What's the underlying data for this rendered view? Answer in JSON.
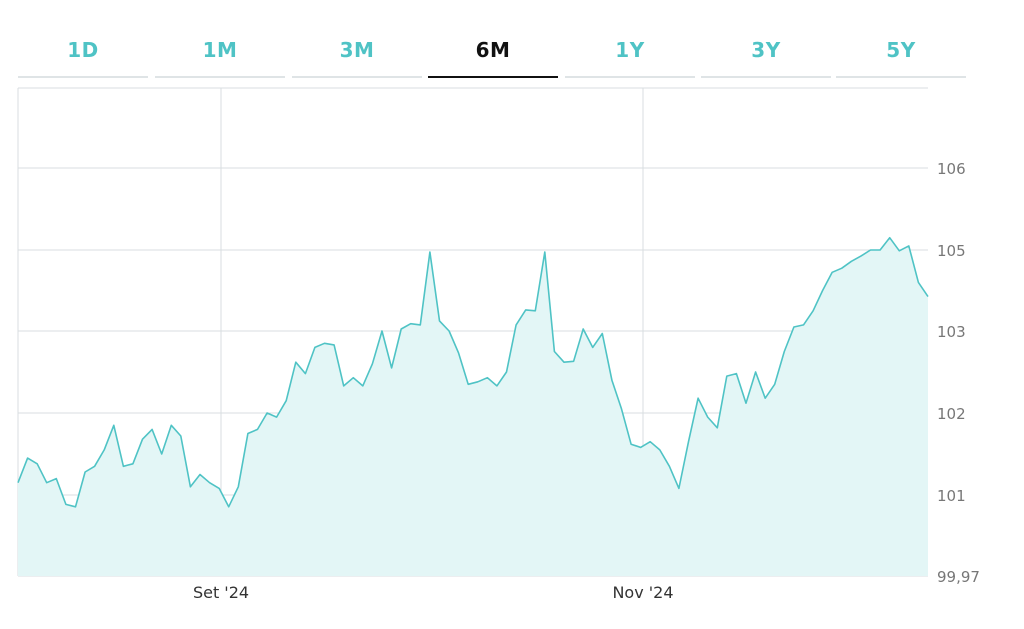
{
  "tabs": [
    {
      "label": "1D",
      "active": false
    },
    {
      "label": "1M",
      "active": false
    },
    {
      "label": "3M",
      "active": false
    },
    {
      "label": "6M",
      "active": true
    },
    {
      "label": "1Y",
      "active": false
    },
    {
      "label": "3Y",
      "active": false
    },
    {
      "label": "5Y",
      "active": false
    }
  ],
  "colors": {
    "accent": "#4fc3c5",
    "fill": "#e3f6f6",
    "grid": "#d9dde0",
    "active_tab": "#111111"
  },
  "chart_data": {
    "type": "area",
    "title": "",
    "xlabel": "",
    "ylabel": "",
    "y_ticks": [
      "106",
      "105",
      "103",
      "102",
      "101",
      "99,97"
    ],
    "x_ticks": [
      "Set '24",
      "Nov '24"
    ],
    "legend": "none",
    "grid": true,
    "series": [
      {
        "values": [
          101.15,
          101.45,
          101.38,
          101.15,
          101.2,
          100.88,
          100.85,
          101.28,
          101.35,
          101.55,
          101.85,
          101.35,
          101.38,
          101.68,
          101.8,
          101.5,
          101.85,
          101.72,
          101.1,
          101.25,
          101.15,
          101.08,
          100.85,
          101.1,
          101.75,
          101.8,
          102.0,
          101.95,
          102.15,
          102.62,
          102.48,
          102.8,
          102.85,
          102.83,
          102.33,
          102.43,
          102.33,
          102.6,
          103.0,
          102.55,
          103.05,
          103.18,
          103.15,
          104.95,
          103.25,
          103.0,
          102.73,
          102.35,
          102.38,
          102.43,
          102.33,
          102.5,
          103.15,
          103.52,
          103.5,
          104.95,
          102.75,
          102.62,
          102.63,
          103.05,
          102.8,
          102.97,
          102.4,
          102.05,
          101.62,
          101.58,
          101.65,
          101.55,
          101.35,
          101.08,
          101.65,
          102.18,
          101.95,
          101.82,
          102.45,
          102.48,
          102.12,
          102.5,
          102.18,
          102.35,
          102.75,
          103.1,
          103.15,
          103.5,
          104.0,
          104.45,
          104.55,
          104.72,
          104.85,
          105.0,
          105.0,
          105.15,
          104.98,
          105.05,
          104.2,
          103.85
        ]
      }
    ]
  }
}
